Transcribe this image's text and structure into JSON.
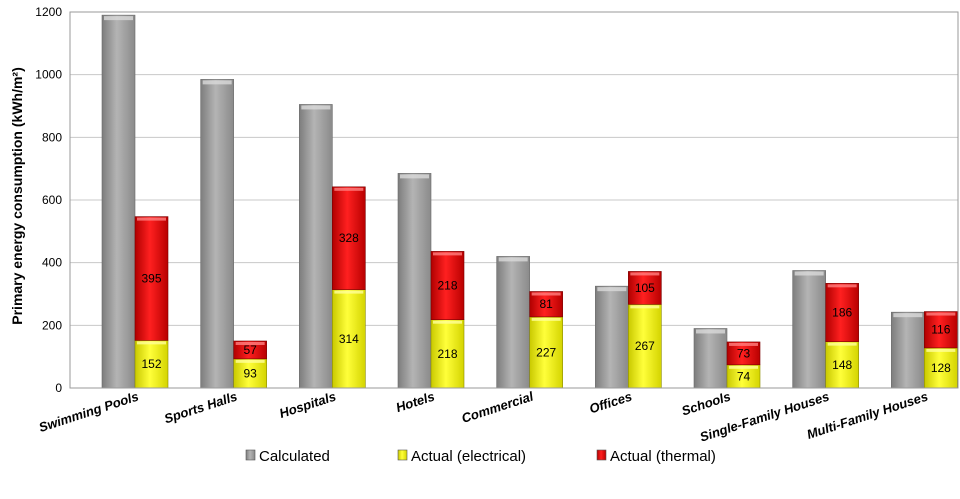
{
  "chart_data": {
    "type": "bar",
    "title": "",
    "xlabel": "",
    "ylabel": "Primary energy consumption (kWh/m²)",
    "ylim": [
      0,
      1200
    ],
    "yticks": [
      0,
      200,
      400,
      600,
      800,
      1000,
      1200
    ],
    "grid": true,
    "legend_position": "bottom",
    "categories": [
      "Swimming Pools",
      "Sports Halls",
      "Hospitals",
      "Hotels",
      "Commercial",
      "Offices",
      "Schools",
      "Single-Family Houses",
      "Multi-Family Houses"
    ],
    "series": [
      {
        "name": "Calculated",
        "stack": "calculated",
        "color": "#a6a6a6",
        "values": [
          1190,
          985,
          905,
          685,
          420,
          325,
          190,
          375,
          242
        ]
      },
      {
        "name": "Actual (electrical)",
        "stack": "actual",
        "color": "#f2f218",
        "values": [
          152,
          93,
          314,
          218,
          227,
          267,
          74,
          148,
          128
        ]
      },
      {
        "name": "Actual (thermal)",
        "stack": "actual",
        "color": "#e01010",
        "values": [
          395,
          57,
          328,
          218,
          81,
          105,
          73,
          186,
          116
        ]
      }
    ]
  }
}
